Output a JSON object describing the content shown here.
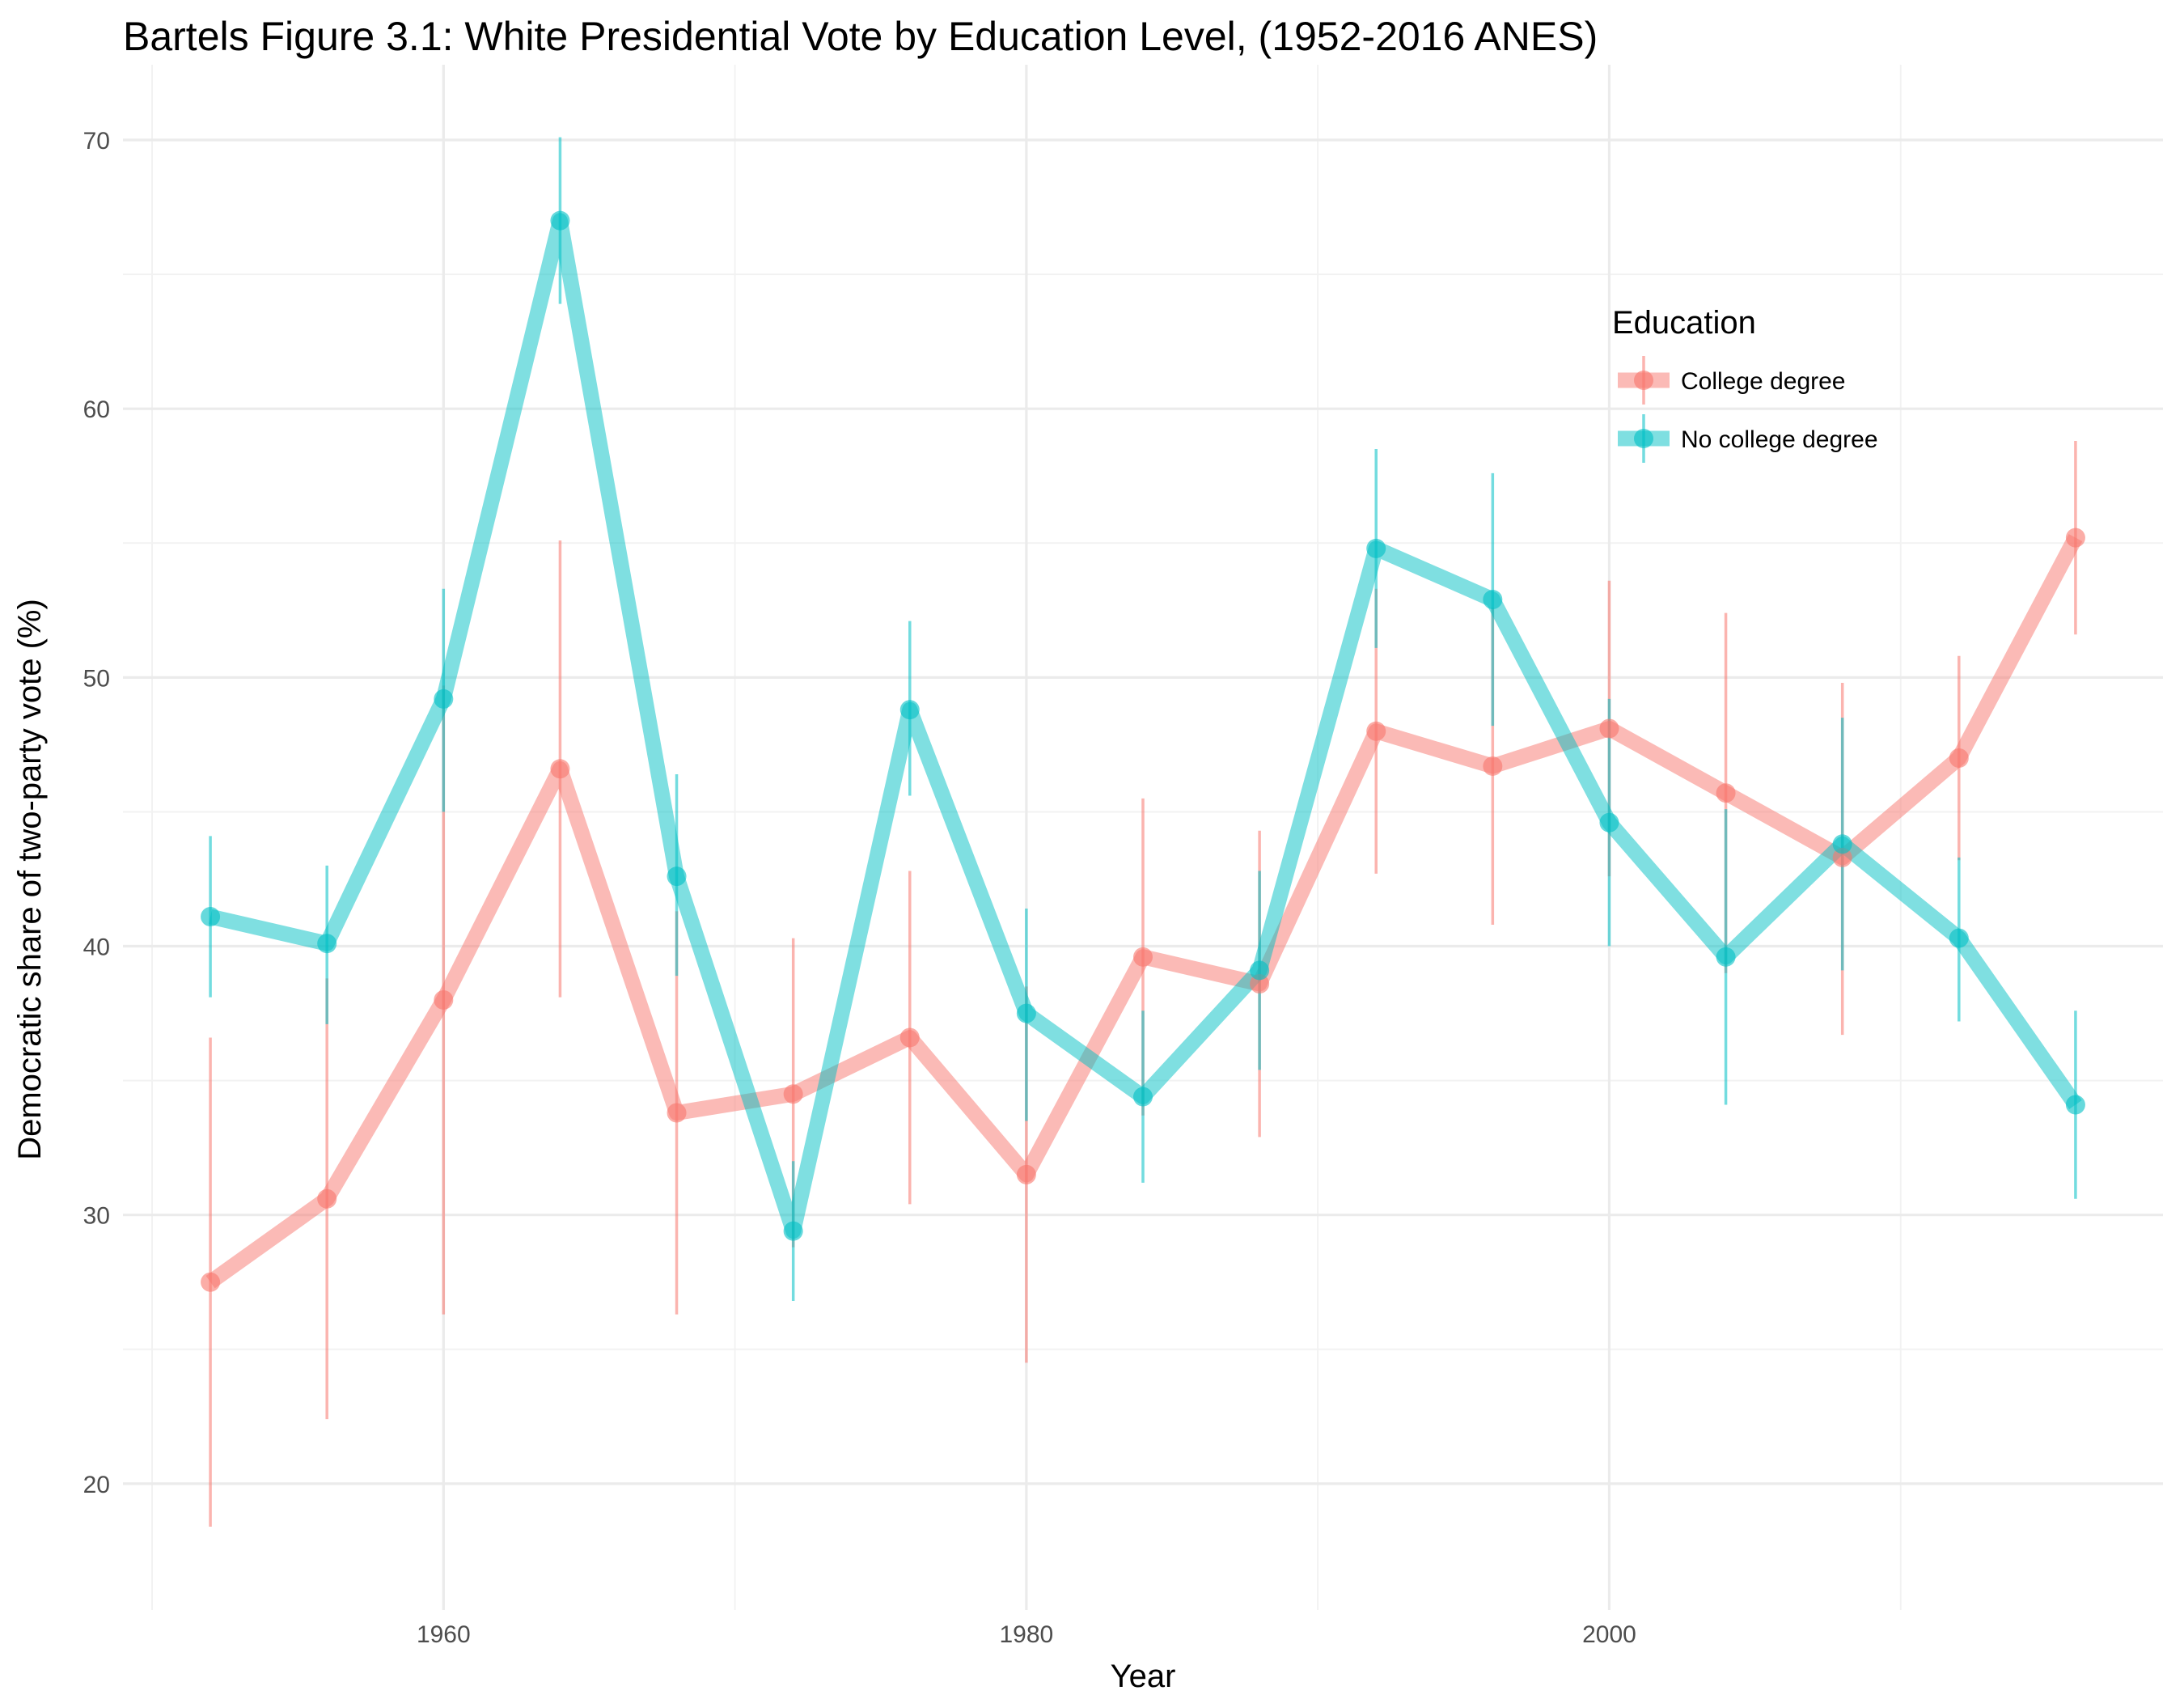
{
  "chart_data": {
    "type": "line",
    "title": "Bartels Figure 3.1: White Presidential Vote by Education Level, (1952-2016 ANES)",
    "xlabel": "Year",
    "ylabel": "Democratic share of two-party vote (%)",
    "xlim": [
      1949,
      2019
    ],
    "ylim": [
      15.3,
      72.8
    ],
    "x_ticks": [
      1960,
      1980,
      2000
    ],
    "y_ticks": [
      20,
      30,
      40,
      50,
      60,
      70
    ],
    "grid": true,
    "legend": {
      "title": "Education",
      "placement": "top-right"
    },
    "x": [
      1952,
      1956,
      1960,
      1964,
      1968,
      1972,
      1976,
      1980,
      1984,
      1988,
      1992,
      1996,
      2000,
      2004,
      2008,
      2012,
      2016
    ],
    "series": [
      {
        "name": "College degree",
        "color": "#F8766D",
        "values": [
          27.5,
          30.6,
          38.0,
          46.6,
          33.8,
          34.5,
          36.6,
          31.5,
          39.6,
          38.6,
          48.0,
          46.7,
          48.1,
          45.7,
          43.3,
          47.0,
          55.2
        ],
        "lower": [
          18.4,
          22.4,
          26.3,
          38.1,
          26.3,
          28.8,
          30.4,
          24.5,
          33.7,
          32.9,
          42.7,
          40.8,
          42.6,
          39.0,
          36.7,
          43.2,
          51.6
        ],
        "upper": [
          36.6,
          38.8,
          49.7,
          55.1,
          41.3,
          40.3,
          42.8,
          38.5,
          45.5,
          44.3,
          53.3,
          52.6,
          53.6,
          52.4,
          49.8,
          50.8,
          58.8
        ]
      },
      {
        "name": "No college degree",
        "color": "#00BFC4",
        "values": [
          41.1,
          40.1,
          49.2,
          67.0,
          42.6,
          29.4,
          48.8,
          37.5,
          34.4,
          39.1,
          54.8,
          52.9,
          44.6,
          39.6,
          43.8,
          40.3,
          34.1
        ],
        "lower": [
          38.1,
          37.1,
          45.0,
          63.9,
          38.9,
          26.8,
          45.6,
          33.5,
          31.2,
          35.4,
          51.1,
          48.2,
          40.0,
          34.1,
          39.1,
          37.2,
          30.6
        ],
        "upper": [
          44.1,
          43.0,
          53.3,
          70.1,
          46.4,
          32.0,
          52.1,
          41.4,
          37.6,
          42.8,
          58.5,
          57.6,
          49.2,
          45.1,
          48.5,
          43.3,
          37.6
        ]
      }
    ]
  }
}
